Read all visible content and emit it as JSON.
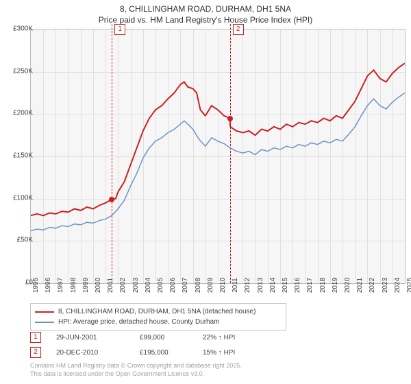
{
  "title": {
    "line1": "8, CHILLINGHAM ROAD, DURHAM, DH1 5NA",
    "line2": "Price paid vs. HM Land Registry's House Price Index (HPI)"
  },
  "chart": {
    "type": "line",
    "background_color": "#f6f6f6",
    "grid_color": "#e0e0e0",
    "border_color": "#bcbcbc",
    "x": {
      "min": 1995,
      "max": 2025,
      "ticks": [
        1995,
        1996,
        1997,
        1998,
        1999,
        2000,
        2001,
        2002,
        2003,
        2004,
        2005,
        2006,
        2007,
        2008,
        2009,
        2010,
        2011,
        2012,
        2013,
        2014,
        2015,
        2016,
        2017,
        2018,
        2019,
        2020,
        2021,
        2022,
        2023,
        2024,
        2025
      ]
    },
    "y": {
      "min": 0,
      "max": 300000,
      "ticks": [
        0,
        50000,
        100000,
        150000,
        200000,
        250000,
        300000
      ],
      "labels": [
        "£0",
        "£50K",
        "£100K",
        "£150K",
        "£200K",
        "£250K",
        "£300K"
      ]
    },
    "series": [
      {
        "name": "price_paid",
        "color": "#cc2020",
        "width": 2,
        "label": "8, CHILLINGHAM ROAD, DURHAM, DH1 5NA (detached house)",
        "points": [
          [
            1995,
            80000
          ],
          [
            1995.5,
            82000
          ],
          [
            1996,
            80000
          ],
          [
            1996.5,
            83000
          ],
          [
            1997,
            82000
          ],
          [
            1997.5,
            85000
          ],
          [
            1998,
            84000
          ],
          [
            1998.5,
            88000
          ],
          [
            1999,
            86000
          ],
          [
            1999.5,
            90000
          ],
          [
            2000,
            88000
          ],
          [
            2000.5,
            92000
          ],
          [
            2001,
            95000
          ],
          [
            2001.49,
            99000
          ],
          [
            2001.8,
            100000
          ],
          [
            2002,
            108000
          ],
          [
            2002.5,
            120000
          ],
          [
            2003,
            140000
          ],
          [
            2003.5,
            160000
          ],
          [
            2004,
            180000
          ],
          [
            2004.5,
            195000
          ],
          [
            2005,
            205000
          ],
          [
            2005.5,
            210000
          ],
          [
            2006,
            218000
          ],
          [
            2006.5,
            225000
          ],
          [
            2007,
            235000
          ],
          [
            2007.3,
            238000
          ],
          [
            2007.6,
            232000
          ],
          [
            2008,
            230000
          ],
          [
            2008.3,
            225000
          ],
          [
            2008.6,
            205000
          ],
          [
            2009,
            198000
          ],
          [
            2009.5,
            210000
          ],
          [
            2010,
            205000
          ],
          [
            2010.5,
            198000
          ],
          [
            2010.97,
            195000
          ],
          [
            2011,
            185000
          ],
          [
            2011.5,
            180000
          ],
          [
            2012,
            178000
          ],
          [
            2012.5,
            180000
          ],
          [
            2013,
            175000
          ],
          [
            2013.5,
            182000
          ],
          [
            2014,
            180000
          ],
          [
            2014.5,
            185000
          ],
          [
            2015,
            182000
          ],
          [
            2015.5,
            188000
          ],
          [
            2016,
            185000
          ],
          [
            2016.5,
            190000
          ],
          [
            2017,
            188000
          ],
          [
            2017.5,
            192000
          ],
          [
            2018,
            190000
          ],
          [
            2018.5,
            195000
          ],
          [
            2019,
            192000
          ],
          [
            2019.5,
            198000
          ],
          [
            2020,
            195000
          ],
          [
            2020.5,
            205000
          ],
          [
            2021,
            215000
          ],
          [
            2021.5,
            230000
          ],
          [
            2022,
            245000
          ],
          [
            2022.5,
            252000
          ],
          [
            2023,
            242000
          ],
          [
            2023.5,
            238000
          ],
          [
            2024,
            248000
          ],
          [
            2024.5,
            255000
          ],
          [
            2025,
            260000
          ]
        ]
      },
      {
        "name": "hpi",
        "color": "#6d93c4",
        "width": 1.5,
        "label": "HPI: Average price, detached house, County Durham",
        "points": [
          [
            1995,
            62000
          ],
          [
            1995.5,
            64000
          ],
          [
            1996,
            63000
          ],
          [
            1996.5,
            66000
          ],
          [
            1997,
            65000
          ],
          [
            1997.5,
            68000
          ],
          [
            1998,
            67000
          ],
          [
            1998.5,
            70000
          ],
          [
            1999,
            69000
          ],
          [
            1999.5,
            72000
          ],
          [
            2000,
            71000
          ],
          [
            2000.5,
            74000
          ],
          [
            2001,
            76000
          ],
          [
            2001.5,
            80000
          ],
          [
            2002,
            88000
          ],
          [
            2002.5,
            98000
          ],
          [
            2003,
            115000
          ],
          [
            2003.5,
            130000
          ],
          [
            2004,
            148000
          ],
          [
            2004.5,
            160000
          ],
          [
            2005,
            168000
          ],
          [
            2005.5,
            172000
          ],
          [
            2006,
            178000
          ],
          [
            2006.5,
            182000
          ],
          [
            2007,
            188000
          ],
          [
            2007.3,
            192000
          ],
          [
            2007.6,
            188000
          ],
          [
            2008,
            182000
          ],
          [
            2008.5,
            170000
          ],
          [
            2009,
            162000
          ],
          [
            2009.5,
            172000
          ],
          [
            2010,
            168000
          ],
          [
            2010.5,
            165000
          ],
          [
            2011,
            160000
          ],
          [
            2011.5,
            156000
          ],
          [
            2012,
            154000
          ],
          [
            2012.5,
            156000
          ],
          [
            2013,
            152000
          ],
          [
            2013.5,
            158000
          ],
          [
            2014,
            156000
          ],
          [
            2014.5,
            160000
          ],
          [
            2015,
            158000
          ],
          [
            2015.5,
            162000
          ],
          [
            2016,
            160000
          ],
          [
            2016.5,
            164000
          ],
          [
            2017,
            162000
          ],
          [
            2017.5,
            166000
          ],
          [
            2018,
            164000
          ],
          [
            2018.5,
            168000
          ],
          [
            2019,
            166000
          ],
          [
            2019.5,
            170000
          ],
          [
            2020,
            168000
          ],
          [
            2020.5,
            176000
          ],
          [
            2021,
            185000
          ],
          [
            2021.5,
            198000
          ],
          [
            2022,
            210000
          ],
          [
            2022.5,
            218000
          ],
          [
            2023,
            210000
          ],
          [
            2023.5,
            206000
          ],
          [
            2024,
            214000
          ],
          [
            2024.5,
            220000
          ],
          [
            2025,
            225000
          ]
        ]
      }
    ],
    "markers": [
      {
        "id": "1",
        "x": 2001.49,
        "y": 99000
      },
      {
        "id": "2",
        "x": 2010.97,
        "y": 195000
      }
    ]
  },
  "legend": {
    "items": [
      {
        "color": "#cc2020",
        "text": "8, CHILLINGHAM ROAD, DURHAM, DH1 5NA (detached house)"
      },
      {
        "color": "#6d93c4",
        "text": "HPI: Average price, detached house, County Durham"
      }
    ]
  },
  "footer_markers": [
    {
      "id": "1",
      "date": "29-JUN-2001",
      "price": "£99,000",
      "pct": "22% ↑ HPI"
    },
    {
      "id": "2",
      "date": "20-DEC-2010",
      "price": "£195,000",
      "pct": "15% ↑ HPI"
    }
  ],
  "copyright": {
    "line1": "Contains HM Land Registry data © Crown copyright and database right 2025.",
    "line2": "This data is licensed under the Open Government Licence v3.0."
  }
}
